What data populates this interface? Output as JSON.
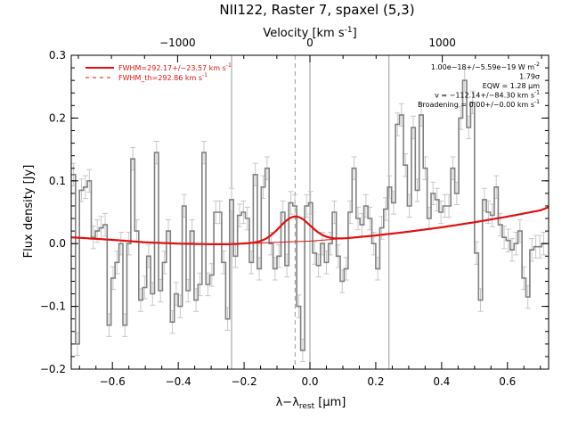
{
  "chart_data": {
    "type": "line",
    "title": "NII122, Raster 7, spaxel (5,3)",
    "xlabel": "λ−λ",
    "xlabel_sub": "rest",
    "xlabel_unit": " [μm]",
    "ylabel": "Flux density [Jy]",
    "top_axis_label": "Velocity [km s",
    "top_axis_label_sup": "-1",
    "top_axis_label_end": "]",
    "xlim": [
      -0.725,
      0.725
    ],
    "ylim": [
      -0.2,
      0.3
    ],
    "x_ticks": [
      -0.6,
      -0.4,
      -0.2,
      0.0,
      0.2,
      0.4,
      0.6
    ],
    "x_tick_labels": [
      "−0.6",
      "−0.4",
      "−0.2",
      "0.0",
      "0.2",
      "0.4",
      "0.6"
    ],
    "y_ticks": [
      -0.2,
      -0.1,
      0.0,
      0.1,
      0.2,
      0.3
    ],
    "y_tick_labels": [
      "−0.2",
      "−0.1",
      "0.0",
      "0.1",
      "0.2",
      "0.3"
    ],
    "top_ticks_km_s": [
      -1000,
      0,
      1000
    ],
    "top_tick_labels": [
      "−1000",
      "0",
      "1000"
    ],
    "vertical_lines": [
      {
        "x": -0.238,
        "style": "solid",
        "color": "#999999"
      },
      {
        "x": 0.0,
        "style": "solid",
        "color": "#999999"
      },
      {
        "x": 0.24,
        "style": "solid",
        "color": "#999999"
      },
      {
        "x": -0.045,
        "style": "dashed",
        "color": "#999999"
      }
    ],
    "spectrum": {
      "color": "#808080",
      "x": [
        -0.718,
        -0.706,
        -0.694,
        -0.682,
        -0.67,
        -0.658,
        -0.646,
        -0.634,
        -0.622,
        -0.61,
        -0.598,
        -0.586,
        -0.574,
        -0.562,
        -0.55,
        -0.538,
        -0.526,
        -0.514,
        -0.502,
        -0.49,
        -0.478,
        -0.466,
        -0.454,
        -0.442,
        -0.43,
        -0.418,
        -0.406,
        -0.394,
        -0.382,
        -0.37,
        -0.358,
        -0.346,
        -0.334,
        -0.322,
        -0.31,
        -0.298,
        -0.286,
        -0.274,
        -0.262,
        -0.25,
        -0.238,
        -0.226,
        -0.214,
        -0.202,
        -0.19,
        -0.178,
        -0.166,
        -0.154,
        -0.142,
        -0.13,
        -0.118,
        -0.106,
        -0.094,
        -0.082,
        -0.07,
        -0.058,
        -0.046,
        -0.034,
        -0.022,
        -0.01,
        0.002,
        0.014,
        0.026,
        0.038,
        0.05,
        0.062,
        0.074,
        0.086,
        0.098,
        0.11,
        0.122,
        0.134,
        0.146,
        0.158,
        0.17,
        0.182,
        0.194,
        0.206,
        0.218,
        0.23,
        0.242,
        0.254,
        0.266,
        0.278,
        0.29,
        0.302,
        0.314,
        0.326,
        0.338,
        0.35,
        0.362,
        0.374,
        0.386,
        0.398,
        0.41,
        0.422,
        0.434,
        0.446,
        0.458,
        0.47,
        0.482,
        0.494,
        0.506,
        0.518,
        0.53,
        0.542,
        0.554,
        0.566,
        0.578,
        0.59,
        0.602,
        0.614,
        0.626,
        0.638,
        0.65,
        0.662,
        0.674,
        0.686,
        0.698,
        0.71
      ],
      "y": [
        0.11,
        -0.16,
        0.085,
        0.09,
        0.1,
        0.01,
        0.02,
        0.025,
        0.03,
        -0.13,
        -0.055,
        -0.03,
        0.0,
        -0.13,
        0.0,
        0.135,
        0.02,
        -0.09,
        -0.07,
        -0.02,
        -0.08,
        0.145,
        -0.075,
        -0.03,
        0.02,
        -0.125,
        -0.08,
        -0.1,
        0.06,
        -0.075,
        0.02,
        -0.09,
        -0.065,
        0.145,
        -0.065,
        -0.05,
        0.05,
        0.05,
        -0.03,
        -0.12,
        0.07,
        -0.02,
        0.045,
        0.05,
        0.04,
        -0.03,
        0.11,
        -0.04,
        0.09,
        0.12,
        0.0,
        -0.04,
        -0.02,
        0.05,
        -0.035,
        0.065,
        0.06,
        -0.1,
        -0.17,
        0.06,
        0.065,
        -0.015,
        -0.035,
        0.0,
        -0.03,
        0.0,
        0.05,
        -0.02,
        -0.06,
        -0.04,
        0.05,
        0.12,
        0.04,
        0.03,
        0.06,
        0.04,
        0.0,
        -0.04,
        0.025,
        0.055,
        0.09,
        0.065,
        0.19,
        0.205,
        0.125,
        0.06,
        0.185,
        0.085,
        0.205,
        0.12,
        0.04,
        0.08,
        0.07,
        0.05,
        0.06,
        0.06,
        0.12,
        0.08,
        0.2,
        0.26,
        0.185,
        0.225,
        -0.015,
        -0.09,
        0.07,
        0.05,
        0.045,
        0.09,
        0.03,
        0.01,
        0.005,
        -0.01,
        0.0,
        0.02,
        -0.055,
        -0.085,
        -0.01,
        -0.005,
        -0.005,
        0.0
      ],
      "err": 0.018
    },
    "fit_curve": {
      "color": "#e01010",
      "continuum_x": [
        -0.725,
        -0.6,
        -0.5,
        -0.4,
        -0.3,
        -0.25,
        -0.2,
        -0.1,
        0.0,
        0.1,
        0.2,
        0.3,
        0.4,
        0.5,
        0.6,
        0.7,
        0.725
      ],
      "continuum_y": [
        0.01,
        0.006,
        0.002,
        0.0,
        -0.001,
        -0.001,
        0.0,
        0.002,
        0.004,
        0.008,
        0.013,
        0.019,
        0.026,
        0.034,
        0.043,
        0.053,
        0.058
      ],
      "line_center": -0.045,
      "line_peak": 0.04,
      "line_fwhm": 0.11
    },
    "legend": [
      {
        "label": "FWHM=292.17+/−23.57 km s",
        "sup": "-1",
        "style": "solid",
        "color": "#e01010"
      },
      {
        "label": "FWHM_th=292.86 km s",
        "sup": "-1",
        "style": "dashed",
        "color": "#e01010"
      }
    ],
    "annotations": [
      {
        "text": "1.00e−18+/−5.59e−19 W m",
        "sup": "-2"
      },
      {
        "text": "1.79σ",
        "sup": ""
      },
      {
        "text": "EQW = 1.28 μm",
        "sup": ""
      },
      {
        "text": "v = −112.14+/−84.30 km s",
        "sup": "-1"
      },
      {
        "text": "Broadening = 0.00+/−0.00 km s",
        "sup": "-1"
      }
    ]
  }
}
